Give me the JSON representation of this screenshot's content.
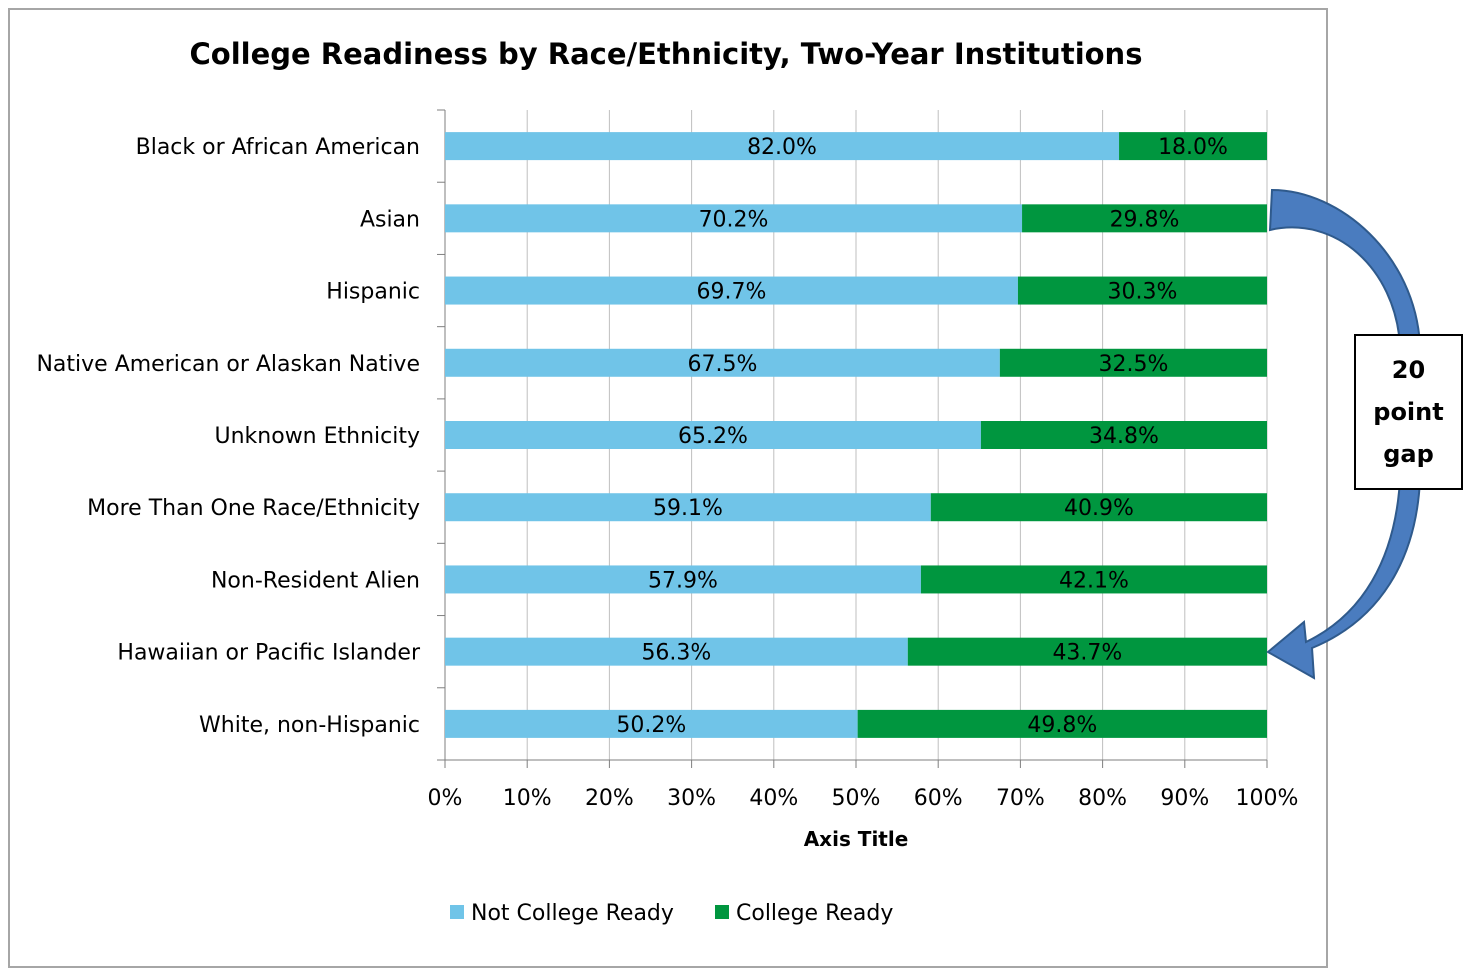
{
  "colors": {
    "not_ready": "#70c4e8",
    "ready": "#00963f",
    "grid": "#bfbfbf",
    "axis": "#7f7f7f",
    "arrow_fill": "#4a7cbf",
    "arrow_stroke": "#2f5a8c"
  },
  "chart_data": {
    "type": "bar",
    "orientation": "horizontal",
    "stacked": "percent",
    "title": "College Readiness by Race/Ethnicity, Two-Year Institutions",
    "xlabel": "Axis Title",
    "ylabel": "",
    "xlim": [
      0,
      100
    ],
    "x_ticks": [
      "0%",
      "10%",
      "20%",
      "30%",
      "40%",
      "50%",
      "60%",
      "70%",
      "80%",
      "90%",
      "100%"
    ],
    "grid": true,
    "legend_position": "bottom",
    "categories": [
      "Black or African American",
      "Asian",
      "Hispanic",
      "Native American or Alaskan Native",
      "Unknown Ethnicity",
      "More Than One Race/Ethnicity",
      "Non-Resident Alien",
      "Hawaiian or Pacific Islander",
      "White, non-Hispanic"
    ],
    "series": [
      {
        "name": "Not College Ready",
        "values": [
          82.0,
          70.2,
          69.7,
          67.5,
          65.2,
          59.1,
          57.9,
          56.3,
          50.2
        ],
        "labels": [
          "82.0%",
          "70.2%",
          "69.7%",
          "67.5%",
          "65.2%",
          "59.1%",
          "57.9%",
          "56.3%",
          "50.2%"
        ]
      },
      {
        "name": "College Ready",
        "values": [
          18.0,
          29.8,
          30.3,
          32.5,
          34.8,
          40.9,
          42.1,
          43.7,
          49.8
        ],
        "labels": [
          "18.0%",
          "29.8%",
          "30.3%",
          "32.5%",
          "34.8%",
          "40.9%",
          "42.1%",
          "43.7%",
          "49.8%"
        ]
      }
    ]
  },
  "annotation": {
    "lines": [
      "20",
      "point",
      "gap"
    ],
    "arrow_from_category": "Asian",
    "arrow_to_category": "Hawaiian or Pacific Islander"
  }
}
